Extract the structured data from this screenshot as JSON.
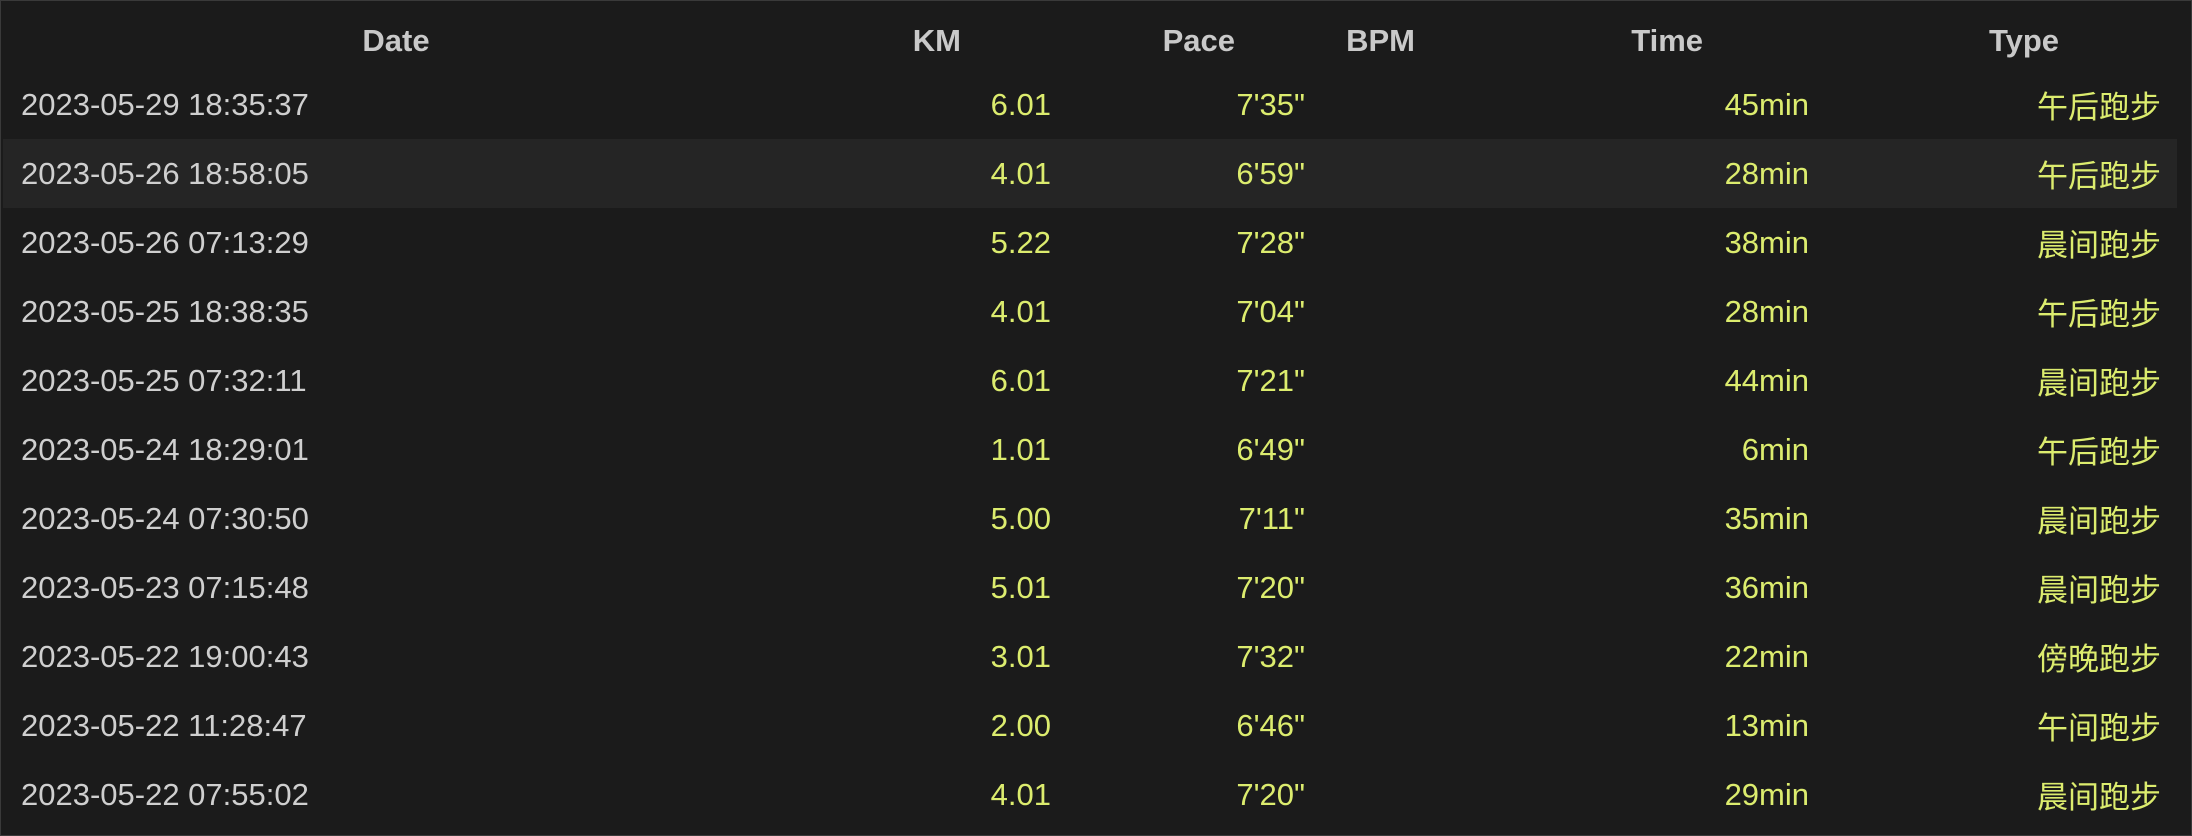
{
  "columns": {
    "date": "Date",
    "km": "KM",
    "pace": "Pace",
    "bpm": "BPM",
    "time": "Time",
    "type": "Type"
  },
  "rows": [
    {
      "date": "2023-05-29 18:35:37",
      "km": "6.01",
      "pace": "7'35\"",
      "bpm": "",
      "time": "45min",
      "type": "午后跑步"
    },
    {
      "date": "2023-05-26 18:58:05",
      "km": "4.01",
      "pace": "6'59\"",
      "bpm": "",
      "time": "28min",
      "type": "午后跑步"
    },
    {
      "date": "2023-05-26 07:13:29",
      "km": "5.22",
      "pace": "7'28\"",
      "bpm": "",
      "time": "38min",
      "type": "晨间跑步"
    },
    {
      "date": "2023-05-25 18:38:35",
      "km": "4.01",
      "pace": "7'04\"",
      "bpm": "",
      "time": "28min",
      "type": "午后跑步"
    },
    {
      "date": "2023-05-25 07:32:11",
      "km": "6.01",
      "pace": "7'21\"",
      "bpm": "",
      "time": "44min",
      "type": "晨间跑步"
    },
    {
      "date": "2023-05-24 18:29:01",
      "km": "1.01",
      "pace": "6'49\"",
      "bpm": "",
      "time": "6min",
      "type": "午后跑步"
    },
    {
      "date": "2023-05-24 07:30:50",
      "km": "5.00",
      "pace": "7'11\"",
      "bpm": "",
      "time": "35min",
      "type": "晨间跑步"
    },
    {
      "date": "2023-05-23 07:15:48",
      "km": "5.01",
      "pace": "7'20\"",
      "bpm": "",
      "time": "36min",
      "type": "晨间跑步"
    },
    {
      "date": "2023-05-22 19:00:43",
      "km": "3.01",
      "pace": "7'32\"",
      "bpm": "",
      "time": "22min",
      "type": "傍晚跑步"
    },
    {
      "date": "2023-05-22 11:28:47",
      "km": "2.00",
      "pace": "6'46\"",
      "bpm": "",
      "time": "13min",
      "type": "午间跑步"
    },
    {
      "date": "2023-05-22 07:55:02",
      "km": "4.01",
      "pace": "7'20\"",
      "bpm": "",
      "time": "29min",
      "type": "晨间跑步"
    }
  ],
  "colors": {
    "background": "#1b1b1b",
    "row_highlight": "#252525",
    "header_text": "#c9c9c9",
    "date_text": "#cfcfcf",
    "value_text": "#dcec6e"
  }
}
